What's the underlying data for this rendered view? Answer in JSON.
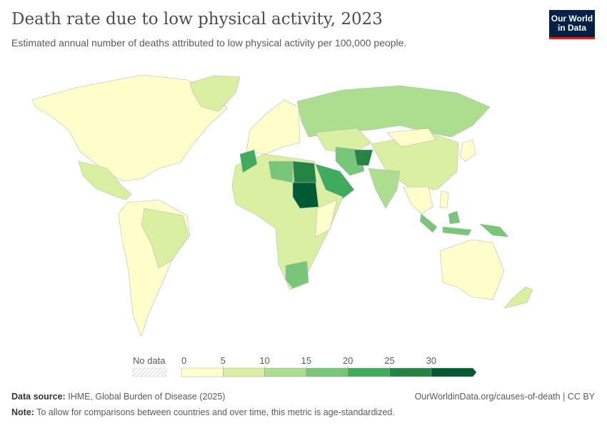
{
  "header": {
    "title": "Death rate due to low physical activity, 2023",
    "subtitle": "Estimated annual number of deaths attributed to low physical activity per 100,000 people."
  },
  "logo": {
    "line1": "Our World",
    "line2": "in Data"
  },
  "chart_data": {
    "type": "map",
    "title": "Death rate due to low physical activity, 2023",
    "legend": {
      "no_data_label": "No data",
      "ticks": [
        "0",
        "5",
        "10",
        "15",
        "20",
        "25",
        "30"
      ],
      "bins": [
        {
          "range": [
            0,
            5
          ],
          "color": "#ffffcc"
        },
        {
          "range": [
            5,
            10
          ],
          "color": "#d9f0a3"
        },
        {
          "range": [
            10,
            15
          ],
          "color": "#addd8e"
        },
        {
          "range": [
            15,
            20
          ],
          "color": "#78c679"
        },
        {
          "range": [
            20,
            25
          ],
          "color": "#41ab5d"
        },
        {
          "range": [
            25,
            30
          ],
          "color": "#238443"
        },
        {
          "range": [
            30,
            null
          ],
          "color": "#005a32"
        }
      ],
      "no_data_color": "#e0e0e0"
    },
    "regions": [
      {
        "name": "North America",
        "bin": 0
      },
      {
        "name": "Greenland",
        "bin": 1
      },
      {
        "name": "Mexico",
        "bin": 1
      },
      {
        "name": "South America",
        "bin": 0
      },
      {
        "name": "Brazil",
        "bin": 1
      },
      {
        "name": "Europe",
        "bin": 0
      },
      {
        "name": "Russia",
        "bin": 2
      },
      {
        "name": "Kazakhstan",
        "bin": 1
      },
      {
        "name": "China",
        "bin": 1
      },
      {
        "name": "Mongolia",
        "bin": 0
      },
      {
        "name": "India",
        "bin": 2
      },
      {
        "name": "Iran",
        "bin": 3
      },
      {
        "name": "Afghanistan",
        "bin": 5
      },
      {
        "name": "Saudi Arabia",
        "bin": 4
      },
      {
        "name": "Africa",
        "bin": 1
      },
      {
        "name": "Libya",
        "bin": 3
      },
      {
        "name": "Egypt",
        "bin": 5
      },
      {
        "name": "Sudan",
        "bin": 6
      },
      {
        "name": "Morocco",
        "bin": 4
      },
      {
        "name": "East Africa",
        "bin": 0
      },
      {
        "name": "South Africa",
        "bin": 3
      },
      {
        "name": "Indonesia",
        "bin": 3
      },
      {
        "name": "Southeast Asia",
        "bin": 0
      },
      {
        "name": "Japan",
        "bin": 0
      },
      {
        "name": "Australia",
        "bin": 0
      },
      {
        "name": "New Zealand",
        "bin": 1
      },
      {
        "name": "Papua New Guinea",
        "bin": 3
      }
    ]
  },
  "footer": {
    "source_label": "Data source:",
    "source": "IHME, Global Burden of Disease (2025)",
    "note_label": "Note:",
    "note": "To allow for comparisons between countries and over time, this metric is age-standardized.",
    "url": "OurWorldinData.org/causes-of-death | CC BY"
  }
}
